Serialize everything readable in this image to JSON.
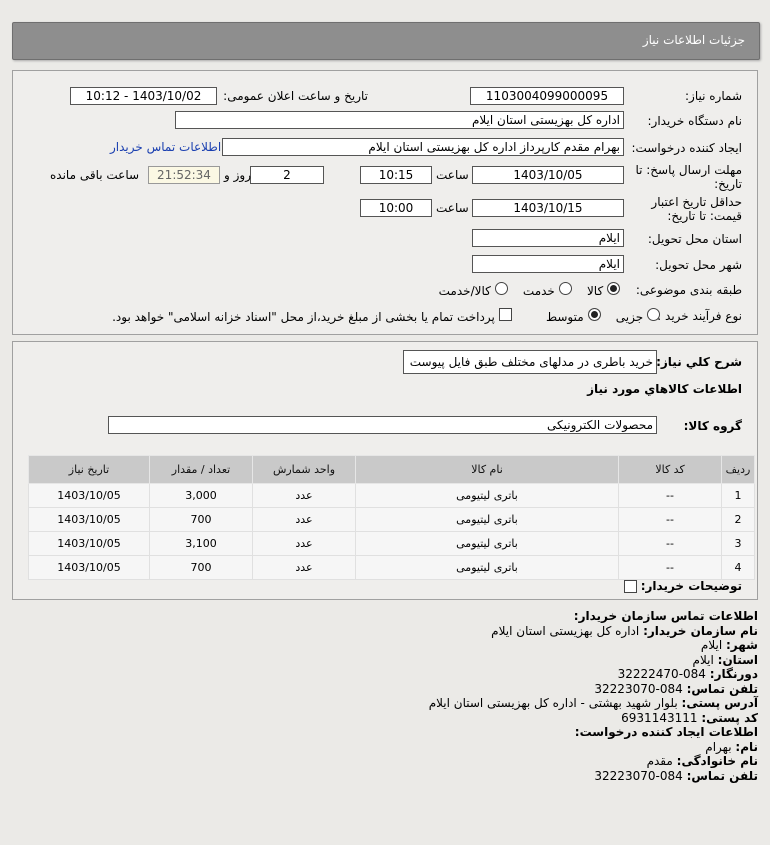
{
  "header": {
    "title": "جزئیات اطلاعات نیاز"
  },
  "form": {
    "need_number_label": "شماره نیاز:",
    "need_number": "1103004099000095",
    "announce_label": "تاریخ و ساعت اعلان عمومی:",
    "announce_value": "1403/10/02 - 10:12",
    "buyer_org_label": "نام دستگاه خریدار:",
    "buyer_org": "اداره کل بهزیستی استان ایلام",
    "creator_label": "ایجاد کننده درخواست:",
    "creator": "بهرام مقدم کارپرداز اداره کل بهزیستی استان ایلام",
    "contact_link": "اطلاعات تماس خریدار",
    "deadline_label_1": "مهلت ارسال پاسخ: تا",
    "deadline_label_2": "تاریخ:",
    "deadline_date": "1403/10/05",
    "time_label": "ساعت",
    "deadline_time": "10:15",
    "days": "2",
    "days_label": "روز و",
    "remaining": "21:52:34",
    "remaining_label": "ساعت باقی مانده",
    "validity_label_1": "حداقل تاریخ اعتبار",
    "validity_label_2": "قیمت: تا تاریخ:",
    "validity_date": "1403/10/15",
    "validity_time": "10:00",
    "province_label": "استان محل تحویل:",
    "province": "ایلام",
    "city_label": "شهر محل تحویل:",
    "city": "ایلام",
    "category_label": "طبقه بندی موضوعی:",
    "category_options": [
      "کالا",
      "خدمت",
      "کالا/خدمت"
    ],
    "category_selected": "کالا",
    "process_label": "نوع فرآیند خرید :",
    "process_options": [
      "جزیی",
      "متوسط"
    ],
    "process_selected": "متوسط",
    "payment_note": "پرداخت تمام یا بخشی از مبلغ خرید،از محل \"اسناد خزانه اسلامی\" خواهد بود."
  },
  "details": {
    "summary_label": "شرح کلي نياز:",
    "summary": "خرید باطری در مدلهای مختلف طبق فایل پیوست",
    "goods_title": "اطلاعات کالاهاي مورد نياز",
    "group_label": "گروه کالا:",
    "group": "محصولات الکترونیکی",
    "columns": [
      "رديف",
      "کد کالا",
      "نام کالا",
      "واحد شمارش",
      "تعداد / مقدار",
      "تاریخ نیاز"
    ],
    "rows": [
      [
        "1",
        "--",
        "باتری لیتیومی",
        "عدد",
        "3,000",
        "1403/10/05"
      ],
      [
        "2",
        "--",
        "باتری لیتیومی",
        "عدد",
        "700",
        "1403/10/05"
      ],
      [
        "3",
        "--",
        "باتری لیتیومی",
        "عدد",
        "3,100",
        "1403/10/05"
      ],
      [
        "4",
        "--",
        "باتری لیتیومی",
        "عدد",
        "700",
        "1403/10/05"
      ]
    ],
    "buyer_notes_label": "توضیحات خریدار:"
  },
  "contact": {
    "title": "اطلاعات تماس سازمان خریدار:",
    "org_label": "نام سازمان خریدار:",
    "org": "اداره کل بهزیستی استان ایلام",
    "city_label": "شهر:",
    "city": "ایلام",
    "province_label": "استان:",
    "province": "ایلام",
    "fax_label": "دورنگار:",
    "fax": "084-32222470",
    "phone_label": "تلفن تماس:",
    "phone": "084-32223070",
    "address_label": "آدرس پستی:",
    "address": "بلوار شهید بهشتی - اداره کل بهزیستی استان ایلام",
    "postal_label": "کد پستی:",
    "postal": "6931143111",
    "creator_title": "اطلاعات ایجاد کننده درخواست:",
    "name_label": "نام:",
    "name": "بهرام",
    "family_label": "نام خانوادگی:",
    "family": "مقدم",
    "creator_phone_label": "تلفن تماس:",
    "creator_phone": "084-32223070"
  },
  "colors": {
    "header": "#8e8e8e",
    "link": "#1a3fb0",
    "remaining_bg": "#fbf8e4"
  }
}
